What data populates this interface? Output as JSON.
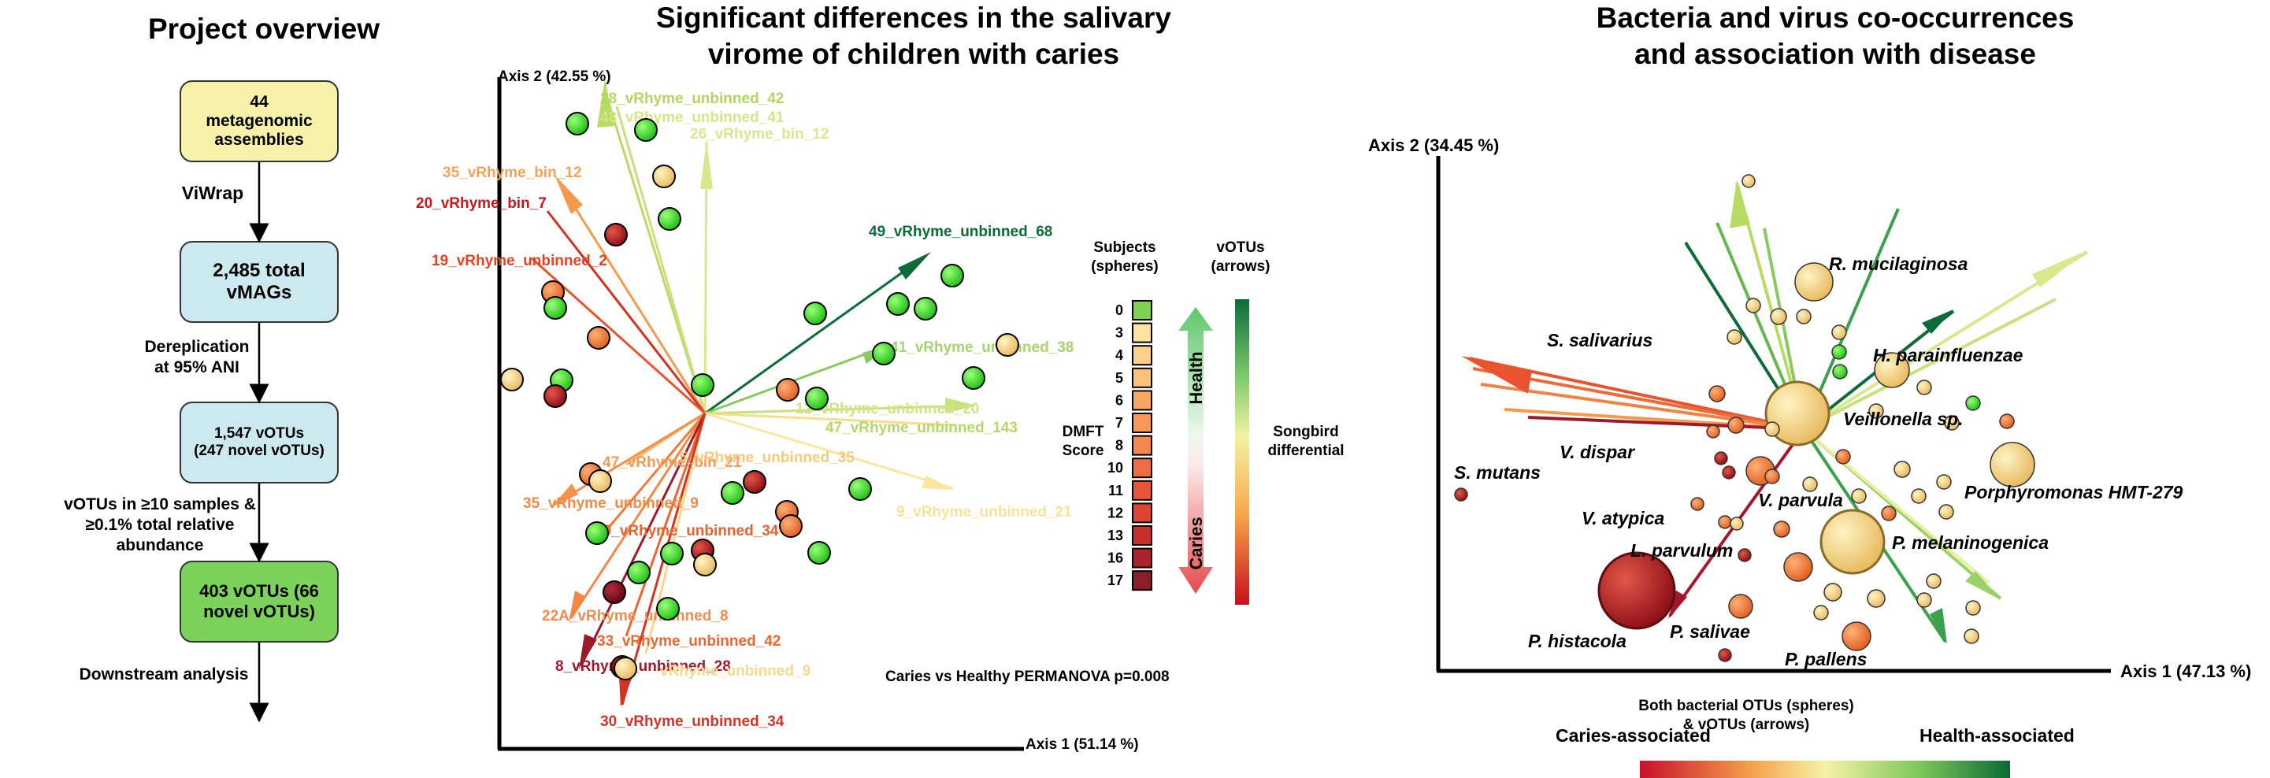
{
  "titles": {
    "overview": "Project overview",
    "virome_line1": "Significant differences in the salivary",
    "virome_line2": "virome of children with caries",
    "cooccur_line1": "Bacteria and virus co-occurrences",
    "cooccur_line2": "and association with disease"
  },
  "flow": {
    "box1": "44 metagenomic assemblies",
    "step1": "ViWrap",
    "box2": "2,485 total vMAGs",
    "step2_line1": "Dereplication",
    "step2_line2": "at 95% ANI",
    "box3_line1": "1,547 vOTUs",
    "box3_line2": "(247 novel vOTUs)",
    "step3_line1": "vOTUs in ≥10 samples &",
    "step3_line2": "≥0.1% total relative abundance",
    "box4": "403 vOTUs (66 novel vOTUs)",
    "step4": "Downstream analysis",
    "colors": {
      "box1": "#f7f2aa",
      "box2": "#cde9f0",
      "box3": "#cde9f0",
      "box4": "#7bd35b"
    }
  },
  "pca1": {
    "axis1": "Axis 1 (51.14 %)",
    "axis2": "Axis 2 (42.55 %)",
    "permanova": "Caries vs Healthy PERMANOVA p=0.008",
    "arrow_labels": [
      "28_vRhyme_unbinned_42",
      "48_vRhyme_unbinned_41",
      "26_vRhyme_bin_12",
      "35_vRhyme_bin_12",
      "20_vRhyme_bin_7",
      "19_vRhyme_unbinned_2",
      "49_vRhyme_unbinned_68",
      "41_vRhyme_unbinned_38",
      "12_vRhyme_unbinned_20",
      "47_vRhyme_unbinned_143",
      "9_vRhyme_unbinned_21",
      "47_vRhyme_bin_21",
      "5_vRhyme_unbinned_35",
      "35_vRhyme_unbinned_9",
      "40_vRhyme_unbinned_34",
      "22A_vRhyme_unbinned_8",
      "33_vRhyme_unbinned_42",
      "8_vRhyme_unbinned_28",
      "vRhyme_unbinned_9",
      "30_vRhyme_unbinned_34"
    ]
  },
  "legend1": {
    "subjects_line1": "Subjects",
    "subjects_line2": "(spheres)",
    "votus_line1": "vOTUs",
    "votus_line2": "(arrows)",
    "dmft_line1": "DMFT",
    "dmft_line2": "Score",
    "health": "Health",
    "caries": "Caries",
    "songbird_line1": "Songbird",
    "songbird_line2": "differential",
    "scores": [
      "0",
      "3",
      "4",
      "5",
      "6",
      "7",
      "8",
      "10",
      "11",
      "12",
      "13",
      "16",
      "17"
    ],
    "score_colors": [
      "#7dd34f",
      "#fde2a0",
      "#fcd08a",
      "#fbc07a",
      "#f9a863",
      "#f8975a",
      "#f48650",
      "#ef6d45",
      "#e8563a",
      "#de4433",
      "#c9302d",
      "#a8232b",
      "#8a1f28"
    ]
  },
  "pca2": {
    "axis1": "Axis 1 (47.13 %)",
    "axis2": "Axis 2 (34.45 %)",
    "species": [
      "R. mucilaginosa",
      "S. salivarius",
      "H. parainfluenzae",
      "Veillonella sp.",
      "V. dispar",
      "S. mutans",
      "V. parvula",
      "Porphyromonas HMT-279",
      "V. atypica",
      "P. melaninogenica",
      "L. parvulum",
      "P. histacola",
      "P. salivae",
      "P. pallens"
    ],
    "caption_line1": "Both bacterial OTUs (spheres)",
    "caption_line2": "& vOTUs (arrows)",
    "caries_assoc": "Caries-associated",
    "health_assoc": "Health-associated"
  }
}
